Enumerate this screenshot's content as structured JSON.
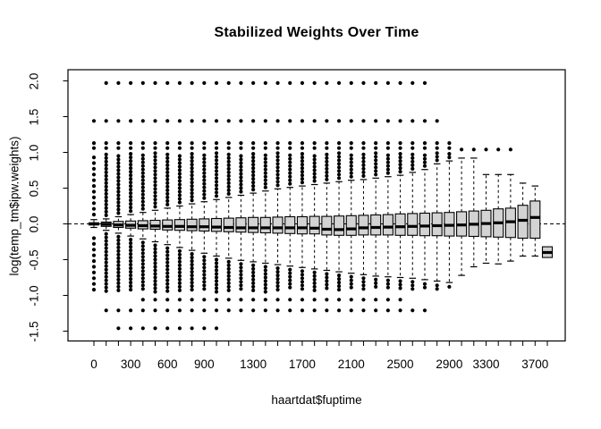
{
  "title": "Stabilized Weights Over Time",
  "chart_data": {
    "type": "boxplot",
    "title": "Stabilized Weights Over Time",
    "xlabel": "haartdat$fuptime",
    "ylabel": "log(temp_tm$ipw.weights)",
    "ylim": [
      -1.64,
      2.16
    ],
    "grid": false,
    "frame": "box",
    "reference_line": {
      "y": 0.0,
      "style": "dashed"
    },
    "colors": {
      "box_fill": "#d3d3d3",
      "stroke": "#000000",
      "background": "#ffffff"
    },
    "n_boxes": 38,
    "dot_step": 0.05,
    "y_ticks": [
      {
        "value": 2.0,
        "label": "2.0"
      },
      {
        "value": 1.5,
        "label": "1.5"
      },
      {
        "value": 1.0,
        "label": "1.0"
      },
      {
        "value": 0.5,
        "label": "0.5"
      },
      {
        "value": 0.0,
        "label": "0.0"
      },
      {
        "value": -0.5,
        "label": "-0.5"
      },
      {
        "value": -1.0,
        "label": "-1.0"
      },
      {
        "value": -1.5,
        "label": "-1.5"
      }
    ],
    "x_tick_labels": [
      {
        "index": 0,
        "label": "0"
      },
      {
        "index": 3,
        "label": "300"
      },
      {
        "index": 6,
        "label": "600"
      },
      {
        "index": 9,
        "label": "900"
      },
      {
        "index": 13,
        "label": "1300"
      },
      {
        "index": 17,
        "label": "1700"
      },
      {
        "index": 21,
        "label": "2100"
      },
      {
        "index": 25,
        "label": "2500"
      },
      {
        "index": 29,
        "label": "2900"
      },
      {
        "index": 32,
        "label": "3300"
      },
      {
        "index": 36,
        "label": "3700"
      }
    ],
    "boxes": [
      {
        "q1": -0.015,
        "med": 0.0,
        "q3": 0.015,
        "wlo": -0.05,
        "whi": 0.06,
        "du": [
          0.13,
          0.99
        ],
        "dl": [
          -0.95,
          -0.2
        ],
        "od": [
          1.44,
          1.13,
          1.06
        ],
        "step": 0.08
      },
      {
        "q1": -0.035,
        "med": -0.005,
        "q3": 0.025,
        "wlo": -0.09,
        "whi": 0.07,
        "du": [
          0.12,
          0.99
        ],
        "dl": [
          -0.95,
          -0.14
        ],
        "od": [
          1.97,
          1.44,
          1.13,
          1.06,
          -1.21
        ]
      },
      {
        "q1": -0.05,
        "med": -0.015,
        "q3": 0.035,
        "wlo": -0.13,
        "whi": 0.1,
        "du": [
          0.15,
          0.99
        ],
        "dl": [
          -0.95,
          -0.18
        ],
        "od": [
          1.97,
          1.44,
          1.13,
          1.06,
          -1.21,
          -1.46
        ]
      },
      {
        "q1": -0.06,
        "med": -0.02,
        "q3": 0.04,
        "wlo": -0.17,
        "whi": 0.13,
        "du": [
          0.18,
          0.99
        ],
        "dl": [
          -0.95,
          -0.22
        ],
        "od": [
          1.97,
          1.44,
          1.13,
          1.06,
          -1.21,
          -1.46
        ]
      },
      {
        "q1": -0.07,
        "med": -0.025,
        "q3": 0.045,
        "wlo": -0.21,
        "whi": 0.16,
        "du": [
          0.21,
          0.99
        ],
        "dl": [
          -0.95,
          -0.26
        ],
        "od": [
          1.97,
          1.44,
          1.13,
          1.06,
          -1.06,
          -1.21,
          -1.46
        ]
      },
      {
        "q1": -0.075,
        "med": -0.03,
        "q3": 0.05,
        "wlo": -0.25,
        "whi": 0.19,
        "du": [
          0.24,
          0.99
        ],
        "dl": [
          -0.95,
          -0.3
        ],
        "od": [
          1.97,
          1.44,
          1.13,
          1.06,
          -1.06,
          -1.21,
          -1.46
        ]
      },
      {
        "q1": -0.085,
        "med": -0.035,
        "q3": 0.055,
        "wlo": -0.29,
        "whi": 0.22,
        "du": [
          0.27,
          0.99
        ],
        "dl": [
          -0.95,
          -0.34
        ],
        "od": [
          1.97,
          1.44,
          1.13,
          1.06,
          -1.06,
          -1.21,
          -1.46
        ]
      },
      {
        "q1": -0.09,
        "med": -0.035,
        "q3": 0.06,
        "wlo": -0.33,
        "whi": 0.25,
        "du": [
          0.3,
          0.99
        ],
        "dl": [
          -0.95,
          -0.38
        ],
        "od": [
          1.97,
          1.44,
          1.13,
          1.06,
          -1.06,
          -1.21,
          -1.46
        ]
      },
      {
        "q1": -0.095,
        "med": -0.04,
        "q3": 0.065,
        "wlo": -0.37,
        "whi": 0.28,
        "du": [
          0.33,
          0.99
        ],
        "dl": [
          -0.95,
          -0.42
        ],
        "od": [
          1.97,
          1.44,
          1.13,
          1.06,
          -1.06,
          -1.21,
          -1.46
        ]
      },
      {
        "q1": -0.1,
        "med": -0.04,
        "q3": 0.07,
        "wlo": -0.41,
        "whi": 0.31,
        "du": [
          0.36,
          0.99
        ],
        "dl": [
          -0.95,
          -0.46
        ],
        "od": [
          1.97,
          1.44,
          1.13,
          1.06,
          -1.06,
          -1.21,
          -1.46
        ]
      },
      {
        "q1": -0.105,
        "med": -0.045,
        "q3": 0.075,
        "wlo": -0.45,
        "whi": 0.34,
        "du": [
          0.39,
          0.99
        ],
        "dl": [
          -0.95,
          -0.5
        ],
        "od": [
          1.97,
          1.44,
          1.13,
          1.06,
          -1.06,
          -1.21,
          -1.46
        ]
      },
      {
        "q1": -0.11,
        "med": -0.05,
        "q3": 0.08,
        "wlo": -0.48,
        "whi": 0.37,
        "du": [
          0.42,
          0.99
        ],
        "dl": [
          -0.95,
          -0.53
        ],
        "od": [
          1.97,
          1.44,
          1.13,
          1.06,
          -1.06,
          -1.21
        ]
      },
      {
        "q1": -0.115,
        "med": -0.055,
        "q3": 0.085,
        "wlo": -0.51,
        "whi": 0.4,
        "du": [
          0.45,
          0.99
        ],
        "dl": [
          -0.95,
          -0.56
        ],
        "od": [
          1.97,
          1.44,
          1.13,
          1.06,
          -1.06,
          -1.21
        ]
      },
      {
        "q1": -0.12,
        "med": -0.055,
        "q3": 0.09,
        "wlo": -0.53,
        "whi": 0.43,
        "du": [
          0.48,
          0.99
        ],
        "dl": [
          -0.95,
          -0.58
        ],
        "od": [
          1.97,
          1.44,
          1.13,
          1.06,
          -1.06,
          -1.21
        ]
      },
      {
        "q1": -0.125,
        "med": -0.055,
        "q3": 0.09,
        "wlo": -0.55,
        "whi": 0.46,
        "du": [
          0.51,
          0.99
        ],
        "dl": [
          -0.95,
          -0.6
        ],
        "od": [
          1.97,
          1.44,
          1.13,
          1.06,
          -1.06,
          -1.21
        ]
      },
      {
        "q1": -0.13,
        "med": -0.055,
        "q3": 0.095,
        "wlo": -0.57,
        "whi": 0.49,
        "du": [
          0.54,
          0.99
        ],
        "dl": [
          -0.93,
          -0.62
        ],
        "od": [
          1.97,
          1.44,
          1.13,
          1.06,
          -1.06,
          -1.21
        ]
      },
      {
        "q1": -0.135,
        "med": -0.055,
        "q3": 0.1,
        "wlo": -0.59,
        "whi": 0.51,
        "du": [
          0.56,
          0.99
        ],
        "dl": [
          -0.93,
          -0.64
        ],
        "od": [
          1.97,
          1.44,
          1.13,
          1.06,
          -1.06,
          -1.21
        ]
      },
      {
        "q1": -0.14,
        "med": -0.055,
        "q3": 0.1,
        "wlo": -0.61,
        "whi": 0.53,
        "du": [
          0.58,
          0.99
        ],
        "dl": [
          -0.93,
          -0.66
        ],
        "od": [
          1.97,
          1.44,
          1.13,
          1.06,
          -1.06,
          -1.21
        ]
      },
      {
        "q1": -0.14,
        "med": -0.06,
        "q3": 0.105,
        "wlo": -0.63,
        "whi": 0.55,
        "du": [
          0.6,
          0.99
        ],
        "dl": [
          -0.93,
          -0.68
        ],
        "od": [
          1.97,
          1.44,
          1.13,
          1.06,
          -1.06,
          -1.21
        ]
      },
      {
        "q1": -0.155,
        "med": -0.075,
        "q3": 0.105,
        "wlo": -0.65,
        "whi": 0.57,
        "du": [
          0.62,
          0.99
        ],
        "dl": [
          -0.93,
          -0.7
        ],
        "od": [
          1.97,
          1.44,
          1.13,
          1.06,
          -1.06,
          -1.21
        ]
      },
      {
        "q1": -0.16,
        "med": -0.08,
        "q3": 0.11,
        "wlo": -0.67,
        "whi": 0.59,
        "du": [
          0.64,
          0.99
        ],
        "dl": [
          -0.93,
          -0.72
        ],
        "od": [
          1.97,
          1.44,
          1.13,
          1.06,
          -1.06,
          -1.21
        ]
      },
      {
        "q1": -0.16,
        "med": -0.07,
        "q3": 0.115,
        "wlo": -0.69,
        "whi": 0.61,
        "du": [
          0.66,
          0.99
        ],
        "dl": [
          -0.91,
          -0.74
        ],
        "od": [
          1.97,
          1.44,
          1.13,
          1.06,
          -1.06,
          -1.21
        ]
      },
      {
        "q1": -0.155,
        "med": -0.055,
        "q3": 0.12,
        "wlo": -0.71,
        "whi": 0.62,
        "du": [
          0.67,
          0.99
        ],
        "dl": [
          -0.91,
          -0.76
        ],
        "od": [
          1.97,
          1.44,
          1.13,
          1.06,
          -1.06,
          -1.21
        ]
      },
      {
        "q1": -0.155,
        "med": -0.05,
        "q3": 0.125,
        "wlo": -0.73,
        "whi": 0.64,
        "du": [
          0.69,
          0.99
        ],
        "dl": [
          -0.91,
          -0.78
        ],
        "od": [
          1.97,
          1.44,
          1.13,
          1.06,
          -1.06,
          -1.21
        ]
      },
      {
        "q1": -0.155,
        "med": -0.045,
        "q3": 0.13,
        "wlo": -0.74,
        "whi": 0.66,
        "du": [
          0.71,
          0.99
        ],
        "dl": [
          -0.91,
          -0.79
        ],
        "od": [
          1.97,
          1.44,
          1.13,
          1.06,
          -1.06,
          -1.21
        ]
      },
      {
        "q1": -0.16,
        "med": -0.04,
        "q3": 0.14,
        "wlo": -0.75,
        "whi": 0.68,
        "du": [
          0.73,
          0.99
        ],
        "dl": [
          -0.91,
          -0.8
        ],
        "od": [
          1.97,
          1.44,
          1.13,
          1.06,
          -1.06,
          -1.21
        ]
      },
      {
        "q1": -0.16,
        "med": -0.035,
        "q3": 0.145,
        "wlo": -0.76,
        "whi": 0.72,
        "du": [
          0.77,
          0.99
        ],
        "dl": [
          -0.91,
          -0.81
        ],
        "od": [
          1.97,
          1.44,
          1.13,
          1.06,
          -1.21
        ]
      },
      {
        "q1": -0.165,
        "med": -0.03,
        "q3": 0.15,
        "wlo": -0.78,
        "whi": 0.76,
        "du": [
          0.81,
          0.99
        ],
        "dl": [
          -0.9,
          -0.84
        ],
        "od": [
          1.97,
          1.44,
          1.13,
          1.06,
          -1.21
        ]
      },
      {
        "q1": -0.165,
        "med": -0.025,
        "q3": 0.155,
        "wlo": -0.8,
        "whi": 0.84,
        "du": [
          0.89,
          0.99
        ],
        "dl": [
          -0.92,
          -0.86
        ],
        "od": [
          1.44,
          1.13,
          1.06
        ]
      },
      {
        "q1": -0.17,
        "med": -0.02,
        "q3": 0.16,
        "wlo": -0.82,
        "whi": 0.88,
        "du": [
          0.93,
          0.99
        ],
        "dl": [
          -0.92,
          -0.88
        ],
        "od": [
          1.13,
          1.06
        ]
      },
      {
        "q1": -0.17,
        "med": -0.015,
        "q3": 0.17,
        "wlo": -0.72,
        "whi": 0.92,
        "du": null,
        "dl": null,
        "od": [
          1.04
        ]
      },
      {
        "q1": -0.175,
        "med": -0.005,
        "q3": 0.18,
        "wlo": -0.6,
        "whi": 0.92,
        "du": null,
        "dl": null,
        "od": [
          1.04
        ]
      },
      {
        "q1": -0.18,
        "med": 0.005,
        "q3": 0.19,
        "wlo": -0.55,
        "whi": 0.69,
        "du": null,
        "dl": null,
        "od": [
          1.04
        ]
      },
      {
        "q1": -0.185,
        "med": 0.015,
        "q3": 0.21,
        "wlo": -0.56,
        "whi": 0.69,
        "du": null,
        "dl": null,
        "od": [
          1.04
        ]
      },
      {
        "q1": -0.19,
        "med": 0.03,
        "q3": 0.22,
        "wlo": -0.52,
        "whi": 0.69,
        "du": null,
        "dl": null,
        "od": [
          1.04
        ]
      },
      {
        "q1": -0.2,
        "med": 0.05,
        "q3": 0.26,
        "wlo": -0.45,
        "whi": 0.57,
        "du": null,
        "dl": null,
        "od": []
      },
      {
        "q1": -0.2,
        "med": 0.09,
        "q3": 0.32,
        "wlo": -0.45,
        "whi": 0.53,
        "du": null,
        "dl": null,
        "od": []
      },
      {
        "q1": -0.47,
        "med": -0.4,
        "q3": -0.32,
        "wlo": null,
        "whi": null,
        "du": null,
        "dl": null,
        "od": []
      }
    ]
  }
}
